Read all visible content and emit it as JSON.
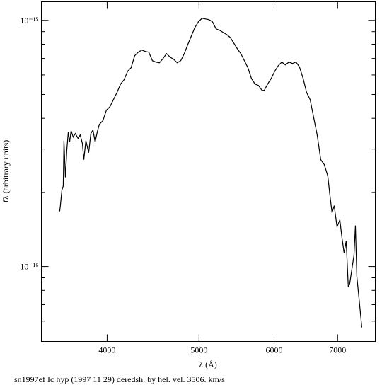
{
  "chart_data": {
    "type": "line",
    "title": "sn1997ef Ic hyp (1997 11 29) deredsh. by hel. vel.  3506. km/s",
    "xlabel": "λ (Å)",
    "ylabel": "fλ (arbitrary units)",
    "xlog": true,
    "ylog": true,
    "xlim": [
      3410,
      7670
    ],
    "ylim": [
      4.96e-17,
      1.19e-15
    ],
    "xticks": [
      4000,
      5000,
      6000,
      7000
    ],
    "yticks": [
      {
        "value": 1e-16,
        "label": "10⁻¹⁶"
      },
      {
        "value": 1e-15,
        "label": "10⁻¹⁵"
      }
    ],
    "yminor": [
      6e-17,
      7e-17,
      8e-17,
      9e-17,
      2e-16,
      3e-16,
      4e-16,
      5e-16,
      6e-16,
      7e-16,
      8e-16,
      9e-16
    ],
    "series": [
      {
        "color": "#000000",
        "x": [
          3565,
          3571,
          3584,
          3596,
          3602,
          3615,
          3627,
          3640,
          3652,
          3665,
          3684,
          3703,
          3728,
          3747,
          3767,
          3780,
          3799,
          3825,
          3845,
          3865,
          3885,
          3905,
          3925,
          3959,
          3993,
          4028,
          4062,
          4097,
          4133,
          4168,
          4204,
          4240,
          4277,
          4314,
          4351,
          4389,
          4426,
          4465,
          4503,
          4542,
          4581,
          4621,
          4661,
          4701,
          4742,
          4783,
          4824,
          4866,
          4908,
          4950,
          4993,
          5036,
          5079,
          5123,
          5166,
          5211,
          5256,
          5301,
          5347,
          5393,
          5440,
          5486,
          5534,
          5582,
          5630,
          5678,
          5727,
          5777,
          5826,
          5857,
          5907,
          5958,
          6009,
          6061,
          6113,
          6166,
          6219,
          6273,
          6327,
          6381,
          6437,
          6492,
          6548,
          6604,
          6661,
          6719,
          6777,
          6835,
          6870,
          6906,
          6942,
          6990,
          7038,
          7074,
          7111,
          7147,
          7184,
          7209,
          7246,
          7284,
          7309,
          7334,
          7372,
          7423
        ],
        "values": [
          1.675e-16,
          1.767e-16,
          2.043e-16,
          2.126e-16,
          3.247e-16,
          2.302e-16,
          2.96e-16,
          3.516e-16,
          3.204e-16,
          3.563e-16,
          3.356e-16,
          3.468e-16,
          3.312e-16,
          3.423e-16,
          3.162e-16,
          2.716e-16,
          3.247e-16,
          2.901e-16,
          3.468e-16,
          3.587e-16,
          3.204e-16,
          3.516e-16,
          3.781e-16,
          3.908e-16,
          4.316e-16,
          4.461e-16,
          4.767e-16,
          5.092e-16,
          5.513e-16,
          5.737e-16,
          6.211e-16,
          6.42e-16,
          7.183e-16,
          7.425e-16,
          7.574e-16,
          7.475e-16,
          7.425e-16,
          6.858e-16,
          6.768e-16,
          6.723e-16,
          6.995e-16,
          7.327e-16,
          7.088e-16,
          6.95e-16,
          6.723e-16,
          6.858e-16,
          7.327e-16,
          7.985e-16,
          8.646e-16,
          9.36e-16,
          9.869e-16,
          1.02e-15,
          1.0133e-15,
          1.0066e-15,
          9.869e-16,
          9.236e-16,
          9.116e-16,
          8.935e-16,
          8.76e-16,
          8.531e-16,
          8.091e-16,
          7.675e-16,
          7.327e-16,
          6.858e-16,
          6.42e-16,
          5.813e-16,
          5.513e-16,
          5.44e-16,
          5.193e-16,
          5.193e-16,
          5.513e-16,
          5.813e-16,
          6.211e-16,
          6.547e-16,
          6.768e-16,
          6.592e-16,
          6.768e-16,
          6.679e-16,
          6.768e-16,
          6.466e-16,
          5.813e-16,
          5.092e-16,
          4.767e-16,
          4.039e-16,
          3.423e-16,
          2.716e-16,
          2.593e-16,
          2.332e-16,
          1.951e-16,
          1.653e-16,
          1.767e-16,
          1.448e-16,
          1.548e-16,
          1.311e-16,
          1.134e-16,
          1.269e-16,
          8.25e-17,
          8.53e-17,
          9.74e-17,
          1.112e-16,
          1.468e-16,
          9.12e-17,
          7.47e-17,
          5.66e-17
        ]
      }
    ]
  }
}
